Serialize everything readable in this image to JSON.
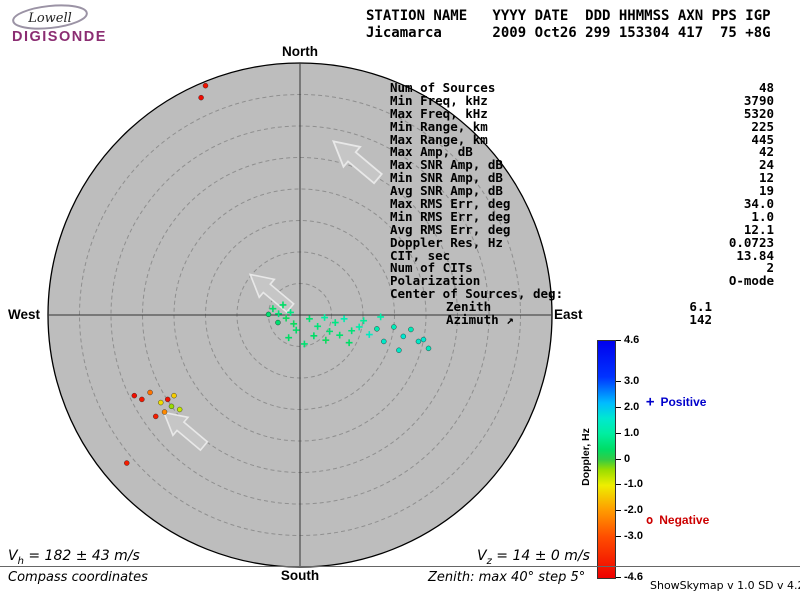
{
  "logo": {
    "top": "Lowell",
    "bottom": "DIGISONDE",
    "accent_color": "#8b2d72"
  },
  "header": {
    "line1": "STATION NAME   YYYY DATE  DDD HHMMSS AXN PPS IGP",
    "line2": "Jicamarca      2009 Oct26 299 153304 417  75 +8G"
  },
  "stats": {
    "rows": [
      {
        "label": "Num of Sources",
        "value": "48"
      },
      {
        "label": "Min Freq, kHz",
        "value": "3790"
      },
      {
        "label": "Max Freq, kHz",
        "value": "5320"
      },
      {
        "label": "Min Range, km",
        "value": "225"
      },
      {
        "label": "Max Range, km",
        "value": "445"
      },
      {
        "label": "Max Amp, dB",
        "value": "42"
      },
      {
        "label": "Max SNR Amp, dB",
        "value": "24"
      },
      {
        "label": "Min SNR Amp, dB",
        "value": "12"
      },
      {
        "label": "Avg SNR Amp, dB",
        "value": "19"
      },
      {
        "label": "Max RMS Err, deg",
        "value": "34.0"
      },
      {
        "label": "Min RMS Err, deg",
        "value": "1.0"
      },
      {
        "label": "Avg RMS Err, deg",
        "value": "12.1"
      },
      {
        "label": "Doppler Res, Hz",
        "value": "0.0723"
      },
      {
        "label": "CIT, sec",
        "value": "13.84"
      },
      {
        "label": "Num of CITs",
        "value": "2"
      },
      {
        "label": "Polarization",
        "value": "O-mode"
      },
      {
        "label": "Center of Sources, deg:",
        "value": ""
      },
      {
        "label": "Zenith",
        "value": "6.1",
        "indent": true
      },
      {
        "label": "Azimuth ↗",
        "value": "142",
        "indent": true
      }
    ]
  },
  "footer": {
    "vh": {
      "symbol": "V",
      "sub": "h",
      "text": "= 182 ± 43 m/s"
    },
    "vz": {
      "symbol": "V",
      "sub": "z",
      "text": "= 14 ± 0 m/s"
    },
    "coords_note": "Compass coordinates",
    "zenith_note": "Zenith: max 40°  step 5°",
    "version": "ShowSkymap v 1.0  SD v 4.2"
  },
  "chart_data": {
    "type": "scatter",
    "projection": "polar-compass-skymap",
    "zenith_max_deg": 40,
    "zenith_step_deg": 5,
    "axis_labels": {
      "top": "North",
      "bottom": "South",
      "left": "West",
      "right": "East"
    },
    "background_color": "#bdbdbd",
    "colorbar": {
      "label": "Doppler, Hz",
      "min": -4.6,
      "max": 4.6,
      "tick_labels": [
        "4.6",
        "3.0",
        "2.0",
        "1.0",
        "0",
        "-1.0",
        "-2.0",
        "-3.0",
        "-4.6"
      ],
      "tick_values": [
        4.6,
        3.0,
        2.0,
        1.0,
        0,
        -1.0,
        -2.0,
        -3.0,
        -4.6
      ],
      "stops": [
        {
          "v": 4.6,
          "c": "#0000ee"
        },
        {
          "v": 3.2,
          "c": "#0033ff"
        },
        {
          "v": 2.2,
          "c": "#00bbff"
        },
        {
          "v": 1.6,
          "c": "#00e8d0"
        },
        {
          "v": 1.0,
          "c": "#00eea0"
        },
        {
          "v": 0.4,
          "c": "#00dd66"
        },
        {
          "v": 0.0,
          "c": "#33cc44"
        },
        {
          "v": -0.4,
          "c": "#99dd00"
        },
        {
          "v": -1.0,
          "c": "#eeee00"
        },
        {
          "v": -2.0,
          "c": "#ff9900"
        },
        {
          "v": -3.0,
          "c": "#ff4d00"
        },
        {
          "v": -4.6,
          "c": "#ee0000"
        }
      ]
    },
    "legend": {
      "positive": {
        "marker": "+",
        "label": "Positive",
        "color": "#0000cc"
      },
      "negative": {
        "marker": "o",
        "label": "Negative",
        "color": "#cc0000"
      }
    },
    "drift_arrows": [
      {
        "east_deg": 9.2,
        "north_deg": 24.3,
        "bearing_deg": 310,
        "scale": 1.0
      },
      {
        "east_deg": -4.4,
        "north_deg": 3.5,
        "bearing_deg": 310,
        "scale": 0.9
      },
      {
        "east_deg": -18.1,
        "north_deg": -18.4,
        "bearing_deg": 310,
        "scale": 0.9
      }
    ],
    "points": [
      {
        "e": -15.0,
        "n": 36.4,
        "d": -4.2,
        "m": "o"
      },
      {
        "e": -15.7,
        "n": 34.5,
        "d": -4.4,
        "m": "o"
      },
      {
        "e": -27.5,
        "n": -23.5,
        "d": -4.0,
        "m": "o"
      },
      {
        "e": -26.3,
        "n": -12.8,
        "d": -4.3,
        "m": "o"
      },
      {
        "e": -25.1,
        "n": -13.4,
        "d": -4.1,
        "m": "o"
      },
      {
        "e": -23.8,
        "n": -12.3,
        "d": -2.5,
        "m": "o"
      },
      {
        "e": -22.9,
        "n": -16.1,
        "d": -4.0,
        "m": "o"
      },
      {
        "e": -22.1,
        "n": -13.9,
        "d": -1.2,
        "m": "o"
      },
      {
        "e": -21.5,
        "n": -15.4,
        "d": -2.2,
        "m": "o"
      },
      {
        "e": -21.0,
        "n": -13.4,
        "d": -4.2,
        "m": "o"
      },
      {
        "e": -20.4,
        "n": -14.5,
        "d": -0.4,
        "m": "o"
      },
      {
        "e": -20.0,
        "n": -12.8,
        "d": -1.4,
        "m": "o"
      },
      {
        "e": -19.1,
        "n": -15.0,
        "d": -0.7,
        "m": "o"
      },
      {
        "e": -5.0,
        "n": 0.1,
        "d": 0.5,
        "m": "o"
      },
      {
        "e": -4.3,
        "n": 1.0,
        "d": 0.4,
        "m": "+"
      },
      {
        "e": -3.4,
        "n": 0.2,
        "d": 0.6,
        "m": "+"
      },
      {
        "e": -3.5,
        "n": -1.2,
        "d": 0.5,
        "m": "o"
      },
      {
        "e": -2.7,
        "n": 1.6,
        "d": 0.4,
        "m": "+"
      },
      {
        "e": -2.2,
        "n": -0.5,
        "d": 0.3,
        "m": "+"
      },
      {
        "e": -1.5,
        "n": 0.4,
        "d": 0.7,
        "m": "+"
      },
      {
        "e": -1.0,
        "n": -1.4,
        "d": 0.3,
        "m": "+"
      },
      {
        "e": -1.8,
        "n": -3.6,
        "d": 0.4,
        "m": "+"
      },
      {
        "e": -0.6,
        "n": -2.4,
        "d": 0.4,
        "m": "+"
      },
      {
        "e": 0.7,
        "n": -4.6,
        "d": 0.5,
        "m": "+"
      },
      {
        "e": 2.2,
        "n": -3.3,
        "d": 0.4,
        "m": "+"
      },
      {
        "e": 4.1,
        "n": -4.0,
        "d": 0.3,
        "m": "+"
      },
      {
        "e": 7.8,
        "n": -4.4,
        "d": 0.4,
        "m": "+"
      },
      {
        "e": 1.5,
        "n": -0.6,
        "d": 0.5,
        "m": "+"
      },
      {
        "e": 2.8,
        "n": -1.8,
        "d": 0.6,
        "m": "+"
      },
      {
        "e": 3.9,
        "n": -0.4,
        "d": 1.0,
        "m": "+"
      },
      {
        "e": 4.7,
        "n": -2.6,
        "d": 0.5,
        "m": "+"
      },
      {
        "e": 5.6,
        "n": -1.2,
        "d": 0.7,
        "m": "+"
      },
      {
        "e": 6.3,
        "n": -3.2,
        "d": 0.5,
        "m": "+"
      },
      {
        "e": 7.0,
        "n": -0.6,
        "d": 1.2,
        "m": "+"
      },
      {
        "e": 8.2,
        "n": -2.5,
        "d": 0.6,
        "m": "+"
      },
      {
        "e": 9.4,
        "n": -1.9,
        "d": 1.1,
        "m": "+"
      },
      {
        "e": 10.1,
        "n": -0.9,
        "d": 0.9,
        "m": "+"
      },
      {
        "e": 11.0,
        "n": -3.1,
        "d": 1.4,
        "m": "+"
      },
      {
        "e": 12.2,
        "n": -2.2,
        "d": 1.2,
        "m": "o"
      },
      {
        "e": 12.8,
        "n": -0.3,
        "d": 1.1,
        "m": "+"
      },
      {
        "e": 13.3,
        "n": -4.2,
        "d": 1.5,
        "m": "o"
      },
      {
        "e": 14.9,
        "n": -1.9,
        "d": 1.3,
        "m": "o"
      },
      {
        "e": 15.7,
        "n": -5.6,
        "d": 1.5,
        "m": "o"
      },
      {
        "e": 16.4,
        "n": -3.4,
        "d": 1.6,
        "m": "o"
      },
      {
        "e": 17.6,
        "n": -2.3,
        "d": 1.3,
        "m": "o"
      },
      {
        "e": 18.8,
        "n": -4.2,
        "d": 1.5,
        "m": "o"
      },
      {
        "e": 19.6,
        "n": -3.9,
        "d": 1.6,
        "m": "o"
      },
      {
        "e": 20.4,
        "n": -5.3,
        "d": 1.4,
        "m": "o"
      }
    ]
  }
}
